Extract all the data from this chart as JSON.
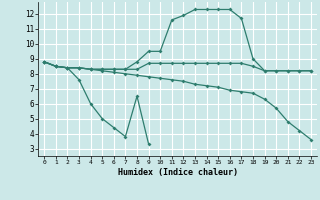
{
  "xlabel": "Humidex (Indice chaleur)",
  "xlim": [
    -0.5,
    23.5
  ],
  "ylim": [
    2.5,
    12.8
  ],
  "yticks": [
    3,
    4,
    5,
    6,
    7,
    8,
    9,
    10,
    11,
    12
  ],
  "xticks": [
    0,
    1,
    2,
    3,
    4,
    5,
    6,
    7,
    8,
    9,
    10,
    11,
    12,
    13,
    14,
    15,
    16,
    17,
    18,
    19,
    20,
    21,
    22,
    23
  ],
  "bg_color": "#cce8e8",
  "grid_color": "#ffffff",
  "line_color": "#2e7d6e",
  "curve1_x": [
    0,
    1,
    2,
    3,
    4,
    5,
    6,
    7,
    8,
    9,
    10,
    11,
    12,
    13,
    14,
    15,
    16,
    17,
    18,
    19,
    20,
    21,
    22,
    23
  ],
  "curve1_y": [
    8.8,
    8.5,
    8.4,
    8.4,
    8.3,
    8.3,
    8.3,
    8.3,
    8.8,
    9.5,
    9.5,
    11.6,
    11.9,
    12.3,
    12.3,
    12.3,
    12.3,
    11.7,
    9.0,
    8.2,
    8.2,
    8.2,
    8.2,
    8.2
  ],
  "curve2_x": [
    0,
    1,
    2,
    3,
    4,
    5,
    6,
    7,
    8,
    9,
    10,
    11,
    12,
    13,
    14,
    15,
    16,
    17,
    18,
    19,
    20,
    21,
    22,
    23
  ],
  "curve2_y": [
    8.8,
    8.5,
    8.4,
    8.4,
    8.3,
    8.3,
    8.3,
    8.3,
    8.3,
    8.7,
    8.7,
    8.7,
    8.7,
    8.7,
    8.7,
    8.7,
    8.7,
    8.7,
    8.5,
    8.2,
    8.2,
    8.2,
    8.2,
    8.2
  ],
  "curve3_x": [
    0,
    1,
    2,
    3,
    4,
    5,
    6,
    7,
    8,
    9
  ],
  "curve3_y": [
    8.8,
    8.5,
    8.4,
    7.6,
    6.0,
    5.0,
    4.4,
    3.8,
    6.5,
    3.3
  ],
  "curve4_x": [
    0,
    1,
    2,
    3,
    4,
    5,
    6,
    7,
    8,
    9,
    10,
    11,
    12,
    13,
    14,
    15,
    16,
    17,
    18,
    19,
    20,
    21,
    22,
    23
  ],
  "curve4_y": [
    8.8,
    8.5,
    8.4,
    8.4,
    8.3,
    8.2,
    8.1,
    8.0,
    7.9,
    7.8,
    7.7,
    7.6,
    7.5,
    7.3,
    7.2,
    7.1,
    6.9,
    6.8,
    6.7,
    6.3,
    5.7,
    4.8,
    4.2,
    3.6
  ]
}
